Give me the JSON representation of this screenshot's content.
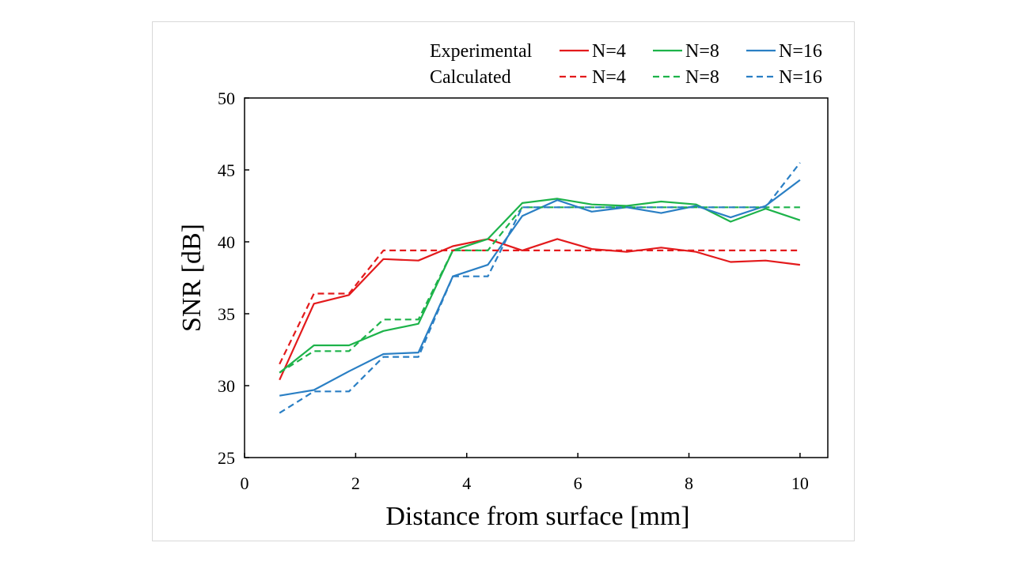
{
  "chart_data": {
    "type": "line",
    "title": "",
    "xlabel": "Distance from surface [mm]",
    "ylabel": "SNR [dB]",
    "xlim": [
      0,
      10.5
    ],
    "ylim": [
      25,
      50
    ],
    "xticks": [
      0,
      2,
      4,
      6,
      8,
      10
    ],
    "yticks": [
      25,
      30,
      35,
      40,
      45,
      50
    ],
    "grid": false,
    "legend": {
      "placement": "top-right",
      "row_labels": [
        "Experimental",
        "Calculated"
      ]
    },
    "series": [
      {
        "name": "N=4",
        "group": "Experimental",
        "color": "#e31a1c",
        "dash": "solid",
        "x": [
          0.63,
          1.25,
          1.88,
          2.5,
          3.13,
          3.75,
          4.38,
          5.0,
          5.63,
          6.25,
          6.88,
          7.5,
          8.13,
          8.75,
          9.38,
          10.0
        ],
        "y": [
          30.4,
          35.7,
          36.3,
          38.8,
          38.7,
          39.7,
          40.2,
          39.4,
          40.2,
          39.5,
          39.3,
          39.6,
          39.3,
          38.6,
          38.7,
          38.4
        ]
      },
      {
        "name": "N=8",
        "group": "Experimental",
        "color": "#1db34a",
        "dash": "solid",
        "x": [
          0.63,
          1.25,
          1.88,
          2.5,
          3.13,
          3.75,
          4.38,
          5.0,
          5.63,
          6.25,
          6.88,
          7.5,
          8.13,
          8.75,
          9.38,
          10.0
        ],
        "y": [
          30.9,
          32.8,
          32.8,
          33.8,
          34.3,
          39.4,
          40.2,
          42.7,
          43.0,
          42.6,
          42.5,
          42.8,
          42.6,
          41.4,
          42.3,
          41.5
        ]
      },
      {
        "name": "N=16",
        "group": "Experimental",
        "color": "#2a7fc4",
        "dash": "solid",
        "x": [
          0.63,
          1.25,
          1.88,
          2.5,
          3.13,
          3.75,
          4.38,
          5.0,
          5.63,
          6.25,
          6.88,
          7.5,
          8.13,
          8.75,
          9.38,
          10.0
        ],
        "y": [
          29.3,
          29.7,
          31.0,
          32.2,
          32.3,
          37.6,
          38.4,
          41.8,
          42.9,
          42.1,
          42.4,
          42.0,
          42.5,
          41.7,
          42.5,
          44.3
        ]
      },
      {
        "name": "N=4",
        "group": "Calculated",
        "color": "#e31a1c",
        "dash": "dashed",
        "x": [
          0.63,
          1.25,
          1.88,
          2.5,
          3.13,
          3.75,
          4.38,
          5.0,
          5.63,
          6.25,
          6.88,
          7.5,
          8.13,
          8.75,
          9.38,
          10.0
        ],
        "y": [
          31.5,
          36.4,
          36.4,
          39.4,
          39.4,
          39.4,
          39.4,
          39.4,
          39.4,
          39.4,
          39.4,
          39.4,
          39.4,
          39.4,
          39.4,
          39.4
        ]
      },
      {
        "name": "N=8",
        "group": "Calculated",
        "color": "#1db34a",
        "dash": "dashed",
        "x": [
          0.63,
          1.25,
          1.88,
          2.5,
          3.13,
          3.75,
          4.38,
          5.0,
          5.63,
          6.25,
          6.88,
          7.5,
          8.13,
          8.75,
          9.38,
          10.0
        ],
        "y": [
          30.9,
          32.4,
          32.4,
          34.6,
          34.6,
          39.4,
          39.4,
          42.4,
          42.4,
          42.4,
          42.4,
          42.4,
          42.4,
          42.4,
          42.4,
          42.4
        ]
      },
      {
        "name": "N=16",
        "group": "Calculated",
        "color": "#2a7fc4",
        "dash": "dashed",
        "x": [
          0.63,
          1.25,
          1.88,
          2.5,
          3.13,
          3.75,
          4.38,
          5.0,
          5.63,
          6.25,
          6.88,
          7.5,
          8.13,
          8.75,
          9.38,
          10.0
        ],
        "y": [
          28.1,
          29.6,
          29.6,
          32.0,
          32.0,
          37.6,
          37.6,
          42.4,
          42.4,
          42.4,
          42.4,
          42.4,
          42.4,
          42.4,
          42.4,
          45.5
        ]
      }
    ]
  }
}
